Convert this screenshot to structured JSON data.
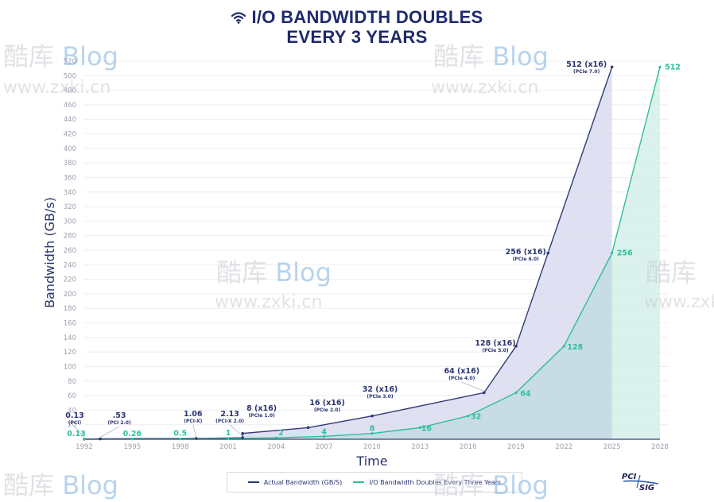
{
  "title": {
    "line1": "I/O BANDWIDTH DOUBLES",
    "line2": "EVERY 3 YEARS",
    "icon": "wifi-icon"
  },
  "colors": {
    "actual": "#2f3a78",
    "actual_fill": "#d9dbee",
    "doubling": "#2fbf9b",
    "doubling_fill": "#cfeee6",
    "title": "#1f2a6b",
    "grid": "#eceef2"
  },
  "legend": {
    "items": [
      {
        "label": "Actual Bandwidth (GB/S)",
        "color": "#2f3a78"
      },
      {
        "label": "I/O Bandwidth Doubles Every Three Years",
        "color": "#2fbf9b"
      }
    ]
  },
  "logo": {
    "top": "PCI",
    "bottom": "SIG"
  },
  "watermarks": [
    {
      "text1": "酷库",
      "text2": "Blog",
      "url": "www.zxki.cn"
    }
  ],
  "chart_data": {
    "type": "line",
    "title": "I/O BANDWIDTH DOUBLES EVERY 3 YEARS",
    "xlabel": "Time",
    "ylabel": "Bandwidth (GB/s)",
    "xlim": [
      1992,
      2028
    ],
    "ylim": [
      0,
      520
    ],
    "x_ticks": [
      "1992",
      "1995",
      "1998",
      "2001",
      "2004",
      "2007",
      "2010",
      "2013",
      "2016",
      "2019",
      "2022",
      "2025",
      "2028"
    ],
    "y_ticks": [
      20,
      40,
      60,
      80,
      100,
      120,
      140,
      160,
      180,
      200,
      220,
      240,
      260,
      280,
      300,
      320,
      340,
      360,
      380,
      400,
      420,
      440,
      460,
      480,
      500,
      520
    ],
    "grid": true,
    "legend_position": "bottom",
    "series": [
      {
        "name": "Actual Bandwidth (GB/S)",
        "points": [
          {
            "year": 1992.0,
            "value": 0.13,
            "label": "0.13",
            "sub": "(PCI)"
          },
          {
            "year": 1993.0,
            "value": 0.53,
            "label": ".53",
            "sub": "(PCI 2.0)"
          },
          {
            "year": 1999.0,
            "value": 1.06,
            "label": "1.06",
            "sub": "(PCI-X)"
          },
          {
            "year": 2001.9,
            "value": 2.13,
            "label": "2.13",
            "sub": "(PCI-X 2.0)"
          },
          {
            "year": 2001.9,
            "value": 8,
            "label": "8 (x16)",
            "sub": "(PCIe 1.0)"
          },
          {
            "year": 2006.0,
            "value": 16,
            "label": "16 (x16)",
            "sub": "(PCIe 2.0)"
          },
          {
            "year": 2010.0,
            "value": 32,
            "label": "32 (x16)",
            "sub": "(PCIe 3.0)"
          },
          {
            "year": 2017.0,
            "value": 64,
            "label": "64 (x16)",
            "sub": "(PCIe 4.0)"
          },
          {
            "year": 2019.0,
            "value": 128,
            "label": "128 (x16)",
            "sub": "(PCIe 5.0)"
          },
          {
            "year": 2021.0,
            "value": 256,
            "label": "256 (x16)",
            "sub": "(PCIe 6.0)"
          },
          {
            "year": 2025.0,
            "value": 512,
            "label": "512 (x16)",
            "sub": "(PCIe 7.0)"
          }
        ]
      },
      {
        "name": "I/O Bandwidth Doubles Every Three Years",
        "points": [
          {
            "year": 1992,
            "value": 0.13,
            "label": "0.13"
          },
          {
            "year": 1995,
            "value": 0.26,
            "label": "0.26"
          },
          {
            "year": 1998,
            "value": 0.5,
            "label": "0.5"
          },
          {
            "year": 2001,
            "value": 1,
            "label": "1"
          },
          {
            "year": 2004,
            "value": 2,
            "label": "2"
          },
          {
            "year": 2007,
            "value": 4,
            "label": "4"
          },
          {
            "year": 2010,
            "value": 8,
            "label": "8"
          },
          {
            "year": 2013,
            "value": 16,
            "label": "16"
          },
          {
            "year": 2016,
            "value": 32,
            "label": "32"
          },
          {
            "year": 2019,
            "value": 64,
            "label": "64"
          },
          {
            "year": 2022,
            "value": 128,
            "label": "128"
          },
          {
            "year": 2025,
            "value": 256,
            "label": "256"
          },
          {
            "year": 2028,
            "value": 512,
            "label": "512"
          }
        ]
      }
    ]
  }
}
